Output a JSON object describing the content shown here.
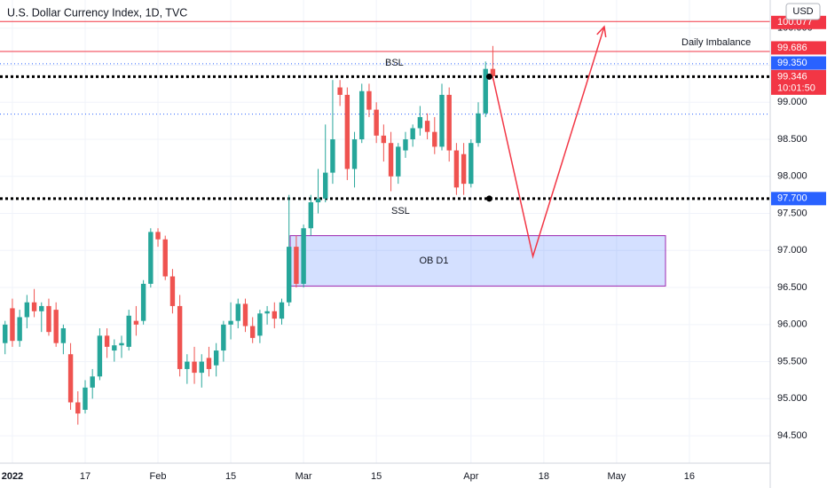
{
  "chart_data": {
    "type": "candlestick",
    "title": "U.S. Dollar Currency Index, 1D, TVC",
    "currency": "USD",
    "up_color": "#26a69a",
    "down_color": "#ef5350",
    "xlim": [
      -0.7,
      105.1
    ],
    "ylim": [
      94.13,
      100.38
    ],
    "xticks": [
      {
        "value": 1,
        "label": "2022"
      },
      {
        "value": 11,
        "label": "17"
      },
      {
        "value": 21,
        "label": "Feb"
      },
      {
        "value": 31,
        "label": "15"
      },
      {
        "value": 41,
        "label": "Mar"
      },
      {
        "value": 51,
        "label": "15"
      },
      {
        "value": 64,
        "label": "Apr"
      },
      {
        "value": 74,
        "label": "18"
      },
      {
        "value": 84,
        "label": "May"
      },
      {
        "value": 94,
        "label": "16"
      }
    ],
    "yticks": [
      {
        "value": 94.5,
        "label": "94.500"
      },
      {
        "value": 95,
        "label": "95.000"
      },
      {
        "value": 95.5,
        "label": "95.500"
      },
      {
        "value": 96,
        "label": "96.000"
      },
      {
        "value": 96.5,
        "label": "96.500"
      },
      {
        "value": 97,
        "label": "97.000"
      },
      {
        "value": 97.5,
        "label": "97.500"
      },
      {
        "value": 98,
        "label": "98.000"
      },
      {
        "value": 98.5,
        "label": "98.500"
      },
      {
        "value": 99,
        "label": "99.000"
      },
      {
        "value": 99.5,
        "label": "99.500"
      },
      {
        "value": 100,
        "label": "100.000"
      }
    ],
    "ohlc": {
      "open": [
        95.75,
        96.22,
        95.78,
        96.1,
        96.3,
        96.18,
        96.25,
        96.2,
        95.75,
        95.6,
        94.95,
        94.85,
        95.15,
        95.3,
        95.85,
        95.65,
        95.72,
        95.7,
        96.05,
        96.05,
        96.55,
        97.25,
        97.15,
        96.65,
        96.25,
        95.4,
        95.5,
        95.35,
        95.55,
        95.45,
        95.65,
        96.0,
        96.05,
        96.28,
        95.98,
        95.85,
        96.15,
        96.18,
        96.08,
        96.3,
        97.05,
        96.55,
        97.3,
        97.65,
        97.7,
        98.05,
        99.2,
        99.1,
        98.1,
        98.5,
        99.15,
        98.9,
        98.55,
        98.45,
        98.0,
        98.35,
        98.5,
        98.65,
        98.75,
        98.6,
        98.4,
        99.1,
        98.35,
        98.3,
        97.9,
        98.45,
        98.85,
        99.45
      ],
      "high": [
        96.05,
        96.35,
        96.2,
        96.4,
        96.48,
        96.3,
        96.35,
        96.3,
        96.0,
        95.75,
        95.1,
        95.25,
        95.4,
        95.95,
        95.95,
        95.8,
        95.85,
        96.2,
        96.25,
        96.6,
        97.3,
        97.3,
        97.2,
        96.75,
        96.4,
        95.6,
        95.7,
        95.6,
        95.7,
        95.75,
        96.05,
        96.3,
        96.35,
        96.35,
        96.1,
        96.2,
        96.25,
        96.3,
        96.35,
        97.75,
        97.2,
        97.35,
        97.75,
        98.1,
        98.7,
        99.3,
        99.3,
        99.2,
        98.6,
        99.25,
        99.25,
        99.0,
        98.7,
        98.6,
        98.45,
        98.6,
        98.7,
        98.95,
        98.85,
        98.8,
        99.25,
        99.2,
        98.45,
        98.45,
        98.5,
        99.0,
        99.55,
        99.76
      ],
      "low": [
        95.6,
        95.7,
        95.7,
        95.95,
        96.1,
        95.9,
        95.85,
        95.7,
        95.6,
        94.85,
        94.65,
        94.8,
        95.0,
        95.25,
        95.55,
        95.5,
        95.55,
        95.65,
        95.85,
        96.0,
        96.5,
        97.05,
        96.6,
        96.15,
        95.3,
        95.2,
        95.2,
        95.15,
        95.3,
        95.3,
        95.5,
        95.8,
        95.95,
        95.9,
        95.75,
        95.75,
        96.0,
        95.95,
        96.0,
        96.25,
        96.5,
        96.5,
        97.2,
        97.5,
        97.65,
        97.9,
        98.95,
        97.95,
        97.85,
        98.45,
        98.8,
        98.45,
        98.2,
        97.8,
        97.9,
        98.25,
        98.4,
        98.55,
        98.5,
        98.3,
        98.35,
        98.2,
        97.75,
        97.75,
        97.85,
        98.4,
        98.8,
        99.3
      ],
      "close": [
        96.0,
        95.78,
        96.1,
        96.3,
        96.18,
        96.25,
        95.9,
        95.75,
        95.95,
        94.95,
        94.8,
        95.15,
        95.3,
        95.85,
        95.7,
        95.72,
        95.75,
        96.12,
        96.0,
        96.55,
        97.25,
        97.15,
        96.65,
        96.25,
        95.4,
        95.5,
        95.35,
        95.5,
        95.4,
        95.65,
        96.0,
        96.05,
        96.28,
        95.98,
        95.82,
        96.15,
        96.18,
        96.08,
        96.3,
        97.05,
        96.55,
        97.3,
        97.65,
        97.7,
        98.05,
        98.5,
        99.1,
        98.1,
        98.5,
        99.15,
        98.9,
        98.55,
        98.45,
        98.0,
        98.4,
        98.5,
        98.65,
        98.8,
        98.6,
        98.4,
        99.1,
        98.35,
        97.85,
        97.9,
        98.45,
        98.85,
        99.45,
        99.35
      ]
    },
    "levels": [
      {
        "value": 100.09,
        "color": "#f23645",
        "style": "solid"
      },
      {
        "value": 99.686,
        "color": "#f23645",
        "style": "solid"
      },
      {
        "value": 99.52,
        "color": "#2962ff",
        "style": "dotted"
      },
      {
        "value": 99.346,
        "color": "#000000",
        "style": "thick"
      },
      {
        "value": 98.84,
        "color": "#2962ff",
        "style": "dotted"
      },
      {
        "value": 97.7,
        "color": "#000000",
        "style": "thick"
      }
    ],
    "price_labels": [
      {
        "value": 100.077,
        "label": "100.077",
        "color": "#f23645"
      },
      {
        "value": 99.686,
        "label": "99.686",
        "color": "#f23645"
      },
      {
        "value": 99.35,
        "label": "99.350",
        "color": "#2962ff"
      },
      {
        "value": 99.346,
        "label": "99.346",
        "color": "#f23645",
        "countdown": "10:01:50"
      },
      {
        "value": 97.7,
        "label": "97.700",
        "color": "#2962ff"
      }
    ],
    "zone": {
      "top": 97.2,
      "bottom": 96.52,
      "label": "OB D1"
    },
    "annotations": {
      "imbalance": "Daily Imbalance",
      "bsl": "BSL",
      "ssl": "SSL"
    },
    "projection": {
      "x": [
        67,
        72.5,
        82.3
      ],
      "y": [
        99.34,
        96.92,
        100.02
      ],
      "color": "#f23645"
    }
  }
}
